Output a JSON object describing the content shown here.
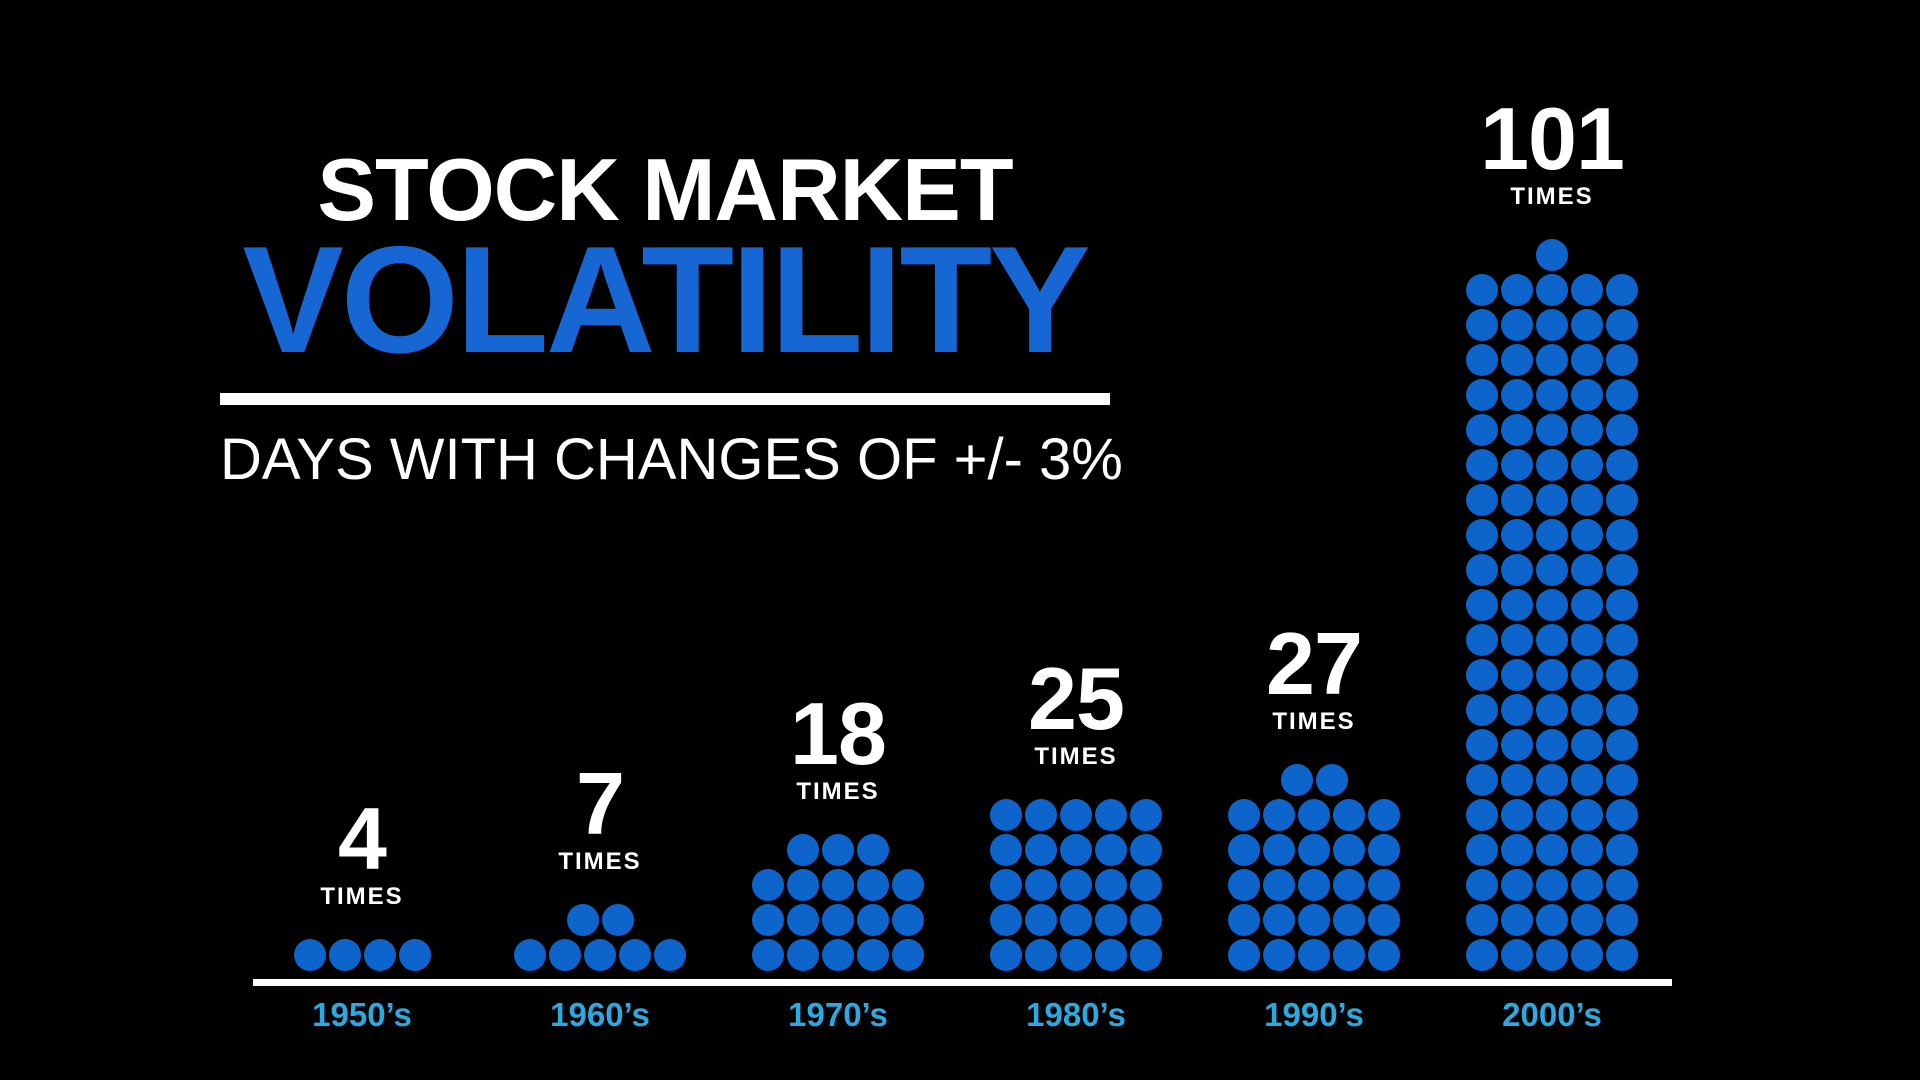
{
  "page": {
    "background": "#000000"
  },
  "header": {
    "title_line1": "STOCK MARKET",
    "title_line2": "VOLATILITY",
    "subtitle": "DAYS WITH CHANGES OF +/- 3%"
  },
  "unit_label": "TIMES",
  "colors": {
    "background": "#000000",
    "title_white": "#ffffff",
    "title_blue": "#1666d3",
    "dot_blue": "#0d64cb",
    "decade_cyan": "#2ba9e0",
    "axis_white": "#ffffff"
  },
  "chart_data": {
    "type": "bar",
    "variant": "dot-matrix-pictogram",
    "title": "STOCK MARKET VOLATILITY",
    "subtitle": "DAYS WITH CHANGES OF +/- 3%",
    "categories": [
      "1950’s",
      "1960’s",
      "1970’s",
      "1980’s",
      "1990’s",
      "2000’s"
    ],
    "values": [
      4,
      7,
      18,
      25,
      27,
      101
    ],
    "value_unit": "TIMES",
    "dots_per_row": 5,
    "dot_value": 1,
    "grid": false,
    "legend_position": "none",
    "category_axis": "decades",
    "ylim": [
      0,
      101
    ]
  }
}
